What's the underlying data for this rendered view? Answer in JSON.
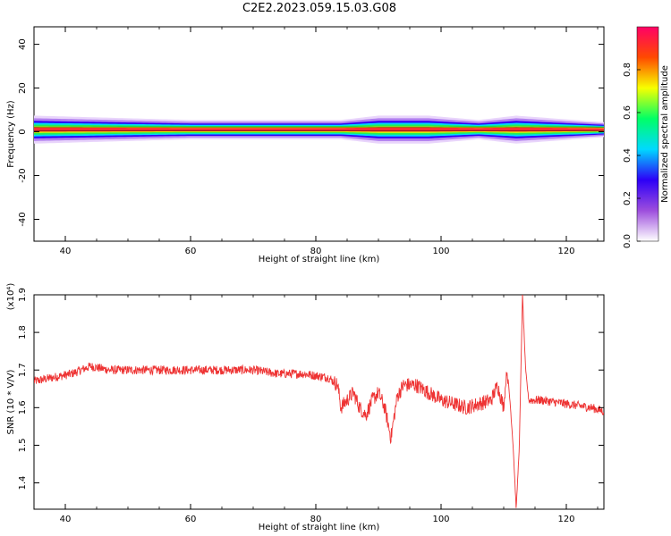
{
  "title": "C2E2.2023.059.15.03.G08",
  "chart_data": [
    {
      "type": "heatmap",
      "xlabel": "Height of straight line (km)",
      "ylabel": "Frequency (Hz)",
      "xlim": [
        35,
        126
      ],
      "ylim": [
        -50,
        48
      ],
      "xticks": [
        "40",
        "60",
        "80",
        "100",
        "120"
      ],
      "yticks": [
        "-40",
        "-20",
        "0",
        "20",
        "40"
      ],
      "colorbar": {
        "label": "Normalized spectral amplitude",
        "range": [
          0,
          1
        ],
        "ticks": [
          "0.0",
          "0.2",
          "0.4",
          "0.6",
          "0.8"
        ],
        "colors": [
          "#ffffff",
          "#9d4edd",
          "#2d00f7",
          "#00d9ff",
          "#00ff66",
          "#f7ff00",
          "#ff4a00",
          "#ff0066"
        ]
      },
      "band": {
        "center_hz": 1,
        "description_points": [
          {
            "x": 35,
            "half_width_hz": 6
          },
          {
            "x": 60,
            "half_width_hz": 4
          },
          {
            "x": 84,
            "half_width_hz": 4
          },
          {
            "x": 90,
            "half_width_hz": 6
          },
          {
            "x": 98,
            "half_width_hz": 6
          },
          {
            "x": 106,
            "half_width_hz": 4
          },
          {
            "x": 112,
            "half_width_hz": 6
          },
          {
            "x": 126,
            "half_width_hz": 3
          }
        ]
      }
    },
    {
      "type": "line",
      "xlabel": "Height of straight line (km)",
      "ylabel": "SNR (10 * V/V)",
      "y_multiplier": "(x10⁴)",
      "xlim": [
        35,
        126
      ],
      "ylim": [
        1.33,
        1.9
      ],
      "xticks": [
        "40",
        "60",
        "80",
        "100",
        "120"
      ],
      "yticks": [
        "1.4",
        "1.5",
        "1.6",
        "1.7",
        "1.8",
        "1.9"
      ],
      "series": [
        {
          "color": "#ee3333",
          "x": [
            35,
            38,
            41,
            44,
            47,
            50,
            54,
            58,
            62,
            66,
            70,
            74,
            78,
            82,
            83.5,
            84,
            85,
            86,
            87,
            88,
            89,
            90,
            91,
            92,
            93,
            94,
            96,
            98,
            100,
            102,
            104,
            106,
            108,
            109,
            110,
            110.5,
            111,
            111.5,
            112,
            112.5,
            113,
            113.5,
            114,
            116,
            120,
            124,
            126
          ],
          "y": [
            1.67,
            1.68,
            1.69,
            1.71,
            1.7,
            1.7,
            1.7,
            1.7,
            1.7,
            1.7,
            1.7,
            1.69,
            1.69,
            1.68,
            1.66,
            1.6,
            1.62,
            1.64,
            1.6,
            1.58,
            1.62,
            1.64,
            1.6,
            1.52,
            1.63,
            1.66,
            1.66,
            1.64,
            1.62,
            1.61,
            1.6,
            1.61,
            1.62,
            1.66,
            1.6,
            1.7,
            1.62,
            1.5,
            1.33,
            1.5,
            1.9,
            1.7,
            1.62,
            1.62,
            1.61,
            1.6,
            1.59
          ]
        }
      ]
    }
  ]
}
